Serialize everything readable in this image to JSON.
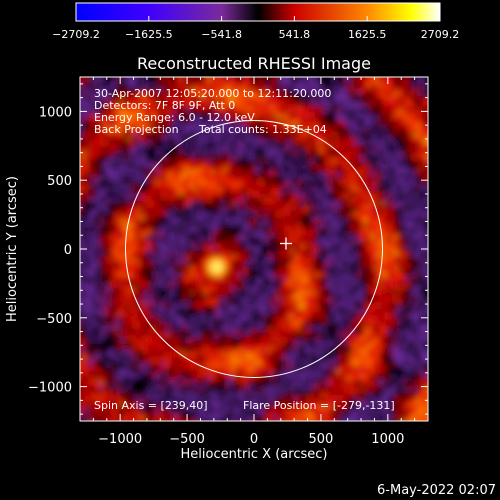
{
  "chart_data": {
    "type": "heatmap",
    "title": "Reconstructed RHESSI Image",
    "xlabel": "Heliocentric X (arcsec)",
    "ylabel": "Heliocentric Y (arcsec)",
    "xlim": [
      -1300,
      1300
    ],
    "ylim": [
      -1250,
      1250
    ],
    "x_ticks": [
      -1000,
      -500,
      0,
      500,
      1000
    ],
    "y_ticks": [
      -1000,
      -500,
      0,
      500,
      1000
    ],
    "x_tick_labels": [
      "−1000",
      "−500",
      "0",
      "500",
      "1000"
    ],
    "y_tick_labels": [
      "−1000",
      "−500",
      "0",
      "500",
      "1000"
    ],
    "colorbar": {
      "min": -2709.2,
      "max": 2709.2,
      "tick_values": [
        -2709.2,
        -1625.5,
        -541.8,
        541.8,
        1625.5,
        2709.2
      ],
      "tick_labels": [
        "−2709.2",
        "−1625.5",
        "−541.8",
        "541.8",
        "1625.5",
        "2709.2"
      ],
      "colors": [
        "#0000ff",
        "#7000ff",
        "#000000",
        "#ff0000",
        "#ffff00",
        "#ffffff"
      ]
    },
    "annotations": [
      "30-Apr-2007 12:05:20.000 to 12:11:20.000",
      "Detectors: 7F 8F 9F, Att 0",
      "Energy Range: 6.0 - 12.0 keV",
      "Back Projection",
      "Total counts: 1.33E+04"
    ],
    "bottom_labels": {
      "spin_axis": "Spin Axis = [239,40]",
      "flare_position": "Flare Position = [-279,-131]"
    },
    "solar_limb": {
      "center": [
        0,
        0
      ],
      "radius_arcsec": 960
    },
    "marker": {
      "type": "cross",
      "x": 239,
      "y": 40
    },
    "hot_spot": {
      "x": -279,
      "y": -131,
      "value": 2709.2
    },
    "grid": false
  },
  "timestamp": "6-May-2022 02:07"
}
